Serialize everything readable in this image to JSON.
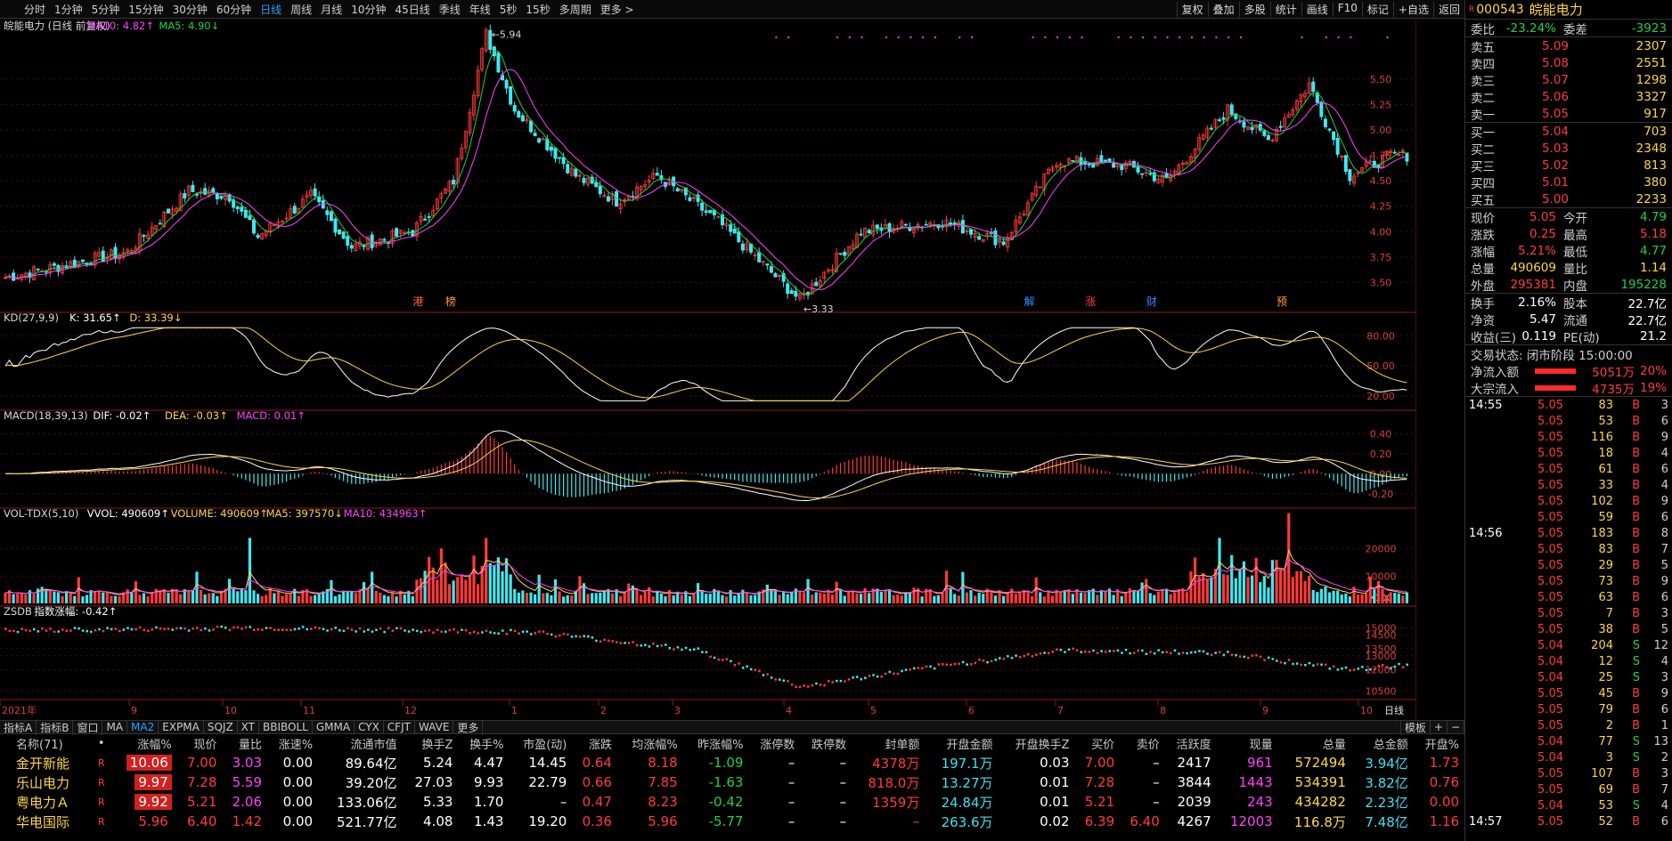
{
  "toolbar": {
    "periods": [
      "分时",
      "1分钟",
      "5分钟",
      "15分钟",
      "30分钟",
      "60分钟",
      "日线",
      "周线",
      "月线",
      "10分钟",
      "45日线",
      "季线",
      "年线",
      "5秒",
      "15秒",
      "多周期",
      "更多 >"
    ],
    "active": "日线",
    "tools": [
      "复权",
      "叠加",
      "多股",
      "统计",
      "画线",
      "F10",
      "标记",
      "+自选",
      "返回"
    ]
  },
  "chart_header": {
    "title": "皖能电力 (日线 前复权)",
    "ma10": "MA10: 4.82↑",
    "ma5": "MA5: 4.90↓"
  },
  "price_axis": [
    "5.50",
    "5.25",
    "5.00",
    "4.75",
    "4.50",
    "4.25",
    "4.00",
    "3.75",
    "3.50"
  ],
  "high_label": "5.94",
  "low_label": "3.33",
  "events": [
    "港",
    "榜",
    "解",
    "涨",
    "财",
    "预"
  ],
  "kd": {
    "header": "KD(27,9,9)",
    "k": "K: 31.65↑",
    "d": "D: 33.39↓",
    "axis": [
      "80.00",
      "50.00",
      "20.00"
    ]
  },
  "macd": {
    "header": "MACD(18,39,13)",
    "dif": "DIF: -0.02↑",
    "dea": "DEA: -0.03↑",
    "macd": "MACD: 0.01↑",
    "axis": [
      "0.40",
      "0.20",
      "0.00",
      "-0.20"
    ]
  },
  "vol": {
    "header": "VOL-TDX(5,10)",
    "vvol": "VVOL: 490609↑",
    "volume": "VOLUME: 490609↑",
    "ma5": "MA5: 397570↓",
    "ma10": "MA10: 434963↑",
    "axis": [
      "20000",
      "10000"
    ],
    "unit": "X100"
  },
  "zsdb": {
    "header": "ZSDB",
    "label": "指数涨幅: -0.42↑",
    "axis": [
      "15000",
      "14500",
      "13500",
      "13000",
      "12000",
      "10500"
    ]
  },
  "xaxis": [
    "2021年",
    "9",
    "10",
    "11",
    "12",
    "1",
    "2",
    "3",
    "4",
    "5",
    "6",
    "7",
    "8",
    "9",
    "10",
    "日线"
  ],
  "indicator_tabs": [
    "指标A",
    "指标B",
    "窗口",
    "MA",
    "MA2",
    "EXPMA",
    "SQJZ",
    "XT",
    "BBIBOLL",
    "GMMA",
    "CYX",
    "CFJT",
    "WAVE",
    "更多"
  ],
  "indicator_active": "MA2",
  "template_btn": "模板",
  "table": {
    "headers": [
      "名称(71)",
      "•",
      "涨幅%",
      "现价",
      "量比",
      "涨速%",
      "流通市值",
      "换手Z",
      "换手%",
      "市盈(动)",
      "涨跌",
      "均涨幅%",
      "昨涨幅%",
      "涨停数",
      "跌停数",
      "封单额",
      "开盘金额",
      "开盘换手Z",
      "买价",
      "卖价",
      "活跃度",
      "现量",
      "总量",
      "总金额",
      "开盘%"
    ],
    "rows": [
      [
        "金开新能",
        "R",
        "10.06",
        "7.00",
        "3.03",
        "0.00",
        "89.64亿",
        "5.24",
        "4.47",
        "14.45",
        "0.64",
        "8.18",
        "-1.09",
        "–",
        "–",
        "4378万",
        "197.1万",
        "0.03",
        "7.00",
        "–",
        "2417",
        "961",
        "572494",
        "3.94亿",
        "1.73"
      ],
      [
        "乐山电力",
        "R",
        "9.97",
        "7.28",
        "5.59",
        "0.00",
        "39.20亿",
        "27.03",
        "9.93",
        "22.79",
        "0.66",
        "7.85",
        "-1.63",
        "–",
        "–",
        "818.0万",
        "13.27万",
        "0.01",
        "7.28",
        "–",
        "3844",
        "1443",
        "534391",
        "3.82亿",
        "0.76"
      ],
      [
        "粤电力Ａ",
        "R",
        "9.92",
        "5.21",
        "2.06",
        "0.00",
        "133.06亿",
        "5.33",
        "1.70",
        "–",
        "0.47",
        "8.23",
        "-0.42",
        "–",
        "–",
        "1359万",
        "24.84万",
        "0.01",
        "5.21",
        "–",
        "2039",
        "243",
        "434282",
        "2.23亿",
        "0.00"
      ],
      [
        "华电国际",
        "R",
        "5.96",
        "6.40",
        "1.42",
        "0.00",
        "521.77亿",
        "4.08",
        "1.43",
        "19.20",
        "0.36",
        "5.96",
        "-5.77",
        "–",
        "–",
        "–",
        "263.6万",
        "0.02",
        "6.39",
        "6.40",
        "4267",
        "12003",
        "116.8万",
        "7.48亿",
        "1.16"
      ]
    ]
  },
  "quote": {
    "code": "000543",
    "name": "皖能电力",
    "wb_label": "委比",
    "wb": "-23.24%",
    "wc_label": "委差",
    "wc": "-3923",
    "asks": [
      [
        "卖五",
        "5.09",
        "2307"
      ],
      [
        "卖四",
        "5.08",
        "2551"
      ],
      [
        "卖三",
        "5.07",
        "1298"
      ],
      [
        "卖二",
        "5.06",
        "3327"
      ],
      [
        "卖一",
        "5.05",
        "917"
      ]
    ],
    "bids": [
      [
        "买一",
        "5.04",
        "703"
      ],
      [
        "买二",
        "5.03",
        "2348"
      ],
      [
        "买三",
        "5.02",
        "813"
      ],
      [
        "买四",
        "5.01",
        "380"
      ],
      [
        "买五",
        "5.00",
        "2233"
      ]
    ],
    "stats": [
      [
        "现价",
        "5.05",
        "今开",
        "4.79"
      ],
      [
        "涨跌",
        "0.25",
        "最高",
        "5.18"
      ],
      [
        "涨幅",
        "5.21%",
        "最低",
        "4.77"
      ],
      [
        "总量",
        "490609",
        "量比",
        "1.14"
      ],
      [
        "外盘",
        "295381",
        "内盘",
        "195228"
      ]
    ],
    "stats2": [
      [
        "换手",
        "2.16%",
        "股本",
        "22.7亿"
      ],
      [
        "净资",
        "5.47",
        "流通",
        "22.7亿"
      ],
      [
        "收益(三)",
        "0.119",
        "PE(动)",
        "21.2"
      ]
    ],
    "status": "交易状态: 闭市阶段 15:00:00",
    "flows": [
      [
        "净流入额",
        "5051万",
        "20%"
      ],
      [
        "大宗流入",
        "4735万",
        "19%"
      ]
    ]
  },
  "ticks": [
    {
      "t": "14:55",
      "p": "5.05",
      "v": "83",
      "s": "B",
      "n": "3"
    },
    {
      "p": "5.05",
      "v": "53",
      "s": "B",
      "n": "6"
    },
    {
      "p": "5.05",
      "v": "116",
      "s": "B",
      "n": "9"
    },
    {
      "p": "5.05",
      "v": "18",
      "s": "B",
      "n": "4"
    },
    {
      "p": "5.05",
      "v": "61",
      "s": "B",
      "n": "6"
    },
    {
      "p": "5.05",
      "v": "33",
      "s": "B",
      "n": "4"
    },
    {
      "p": "5.05",
      "v": "102",
      "s": "B",
      "n": "9"
    },
    {
      "p": "5.05",
      "v": "59",
      "s": "B",
      "n": "6"
    },
    {
      "t": "14:56",
      "p": "5.05",
      "v": "183",
      "s": "B",
      "n": "8"
    },
    {
      "p": "5.05",
      "v": "83",
      "s": "B",
      "n": "7"
    },
    {
      "p": "5.05",
      "v": "29",
      "s": "B",
      "n": "5"
    },
    {
      "p": "5.05",
      "v": "73",
      "s": "B",
      "n": "9"
    },
    {
      "p": "5.05",
      "v": "63",
      "s": "B",
      "n": "6"
    },
    {
      "p": "5.05",
      "v": "7",
      "s": "B",
      "n": "3"
    },
    {
      "p": "5.05",
      "v": "38",
      "s": "B",
      "n": "5"
    },
    {
      "p": "5.04",
      "v": "204",
      "s": "S",
      "n": "12"
    },
    {
      "p": "5.04",
      "v": "12",
      "s": "S",
      "n": "4"
    },
    {
      "p": "5.04",
      "v": "25",
      "s": "S",
      "n": "3"
    },
    {
      "p": "5.05",
      "v": "45",
      "s": "B",
      "n": "9"
    },
    {
      "p": "5.05",
      "v": "79",
      "s": "B",
      "n": "6"
    },
    {
      "p": "5.05",
      "v": "2",
      "s": "B",
      "n": "1"
    },
    {
      "p": "5.04",
      "v": "77",
      "s": "S",
      "n": "13"
    },
    {
      "p": "5.04",
      "v": "3",
      "s": "S",
      "n": "2"
    },
    {
      "p": "5.05",
      "v": "107",
      "s": "B",
      "n": "3"
    },
    {
      "p": "5.05",
      "v": "69",
      "s": "B",
      "n": "7"
    },
    {
      "p": "5.04",
      "v": "53",
      "s": "S",
      "n": "4"
    },
    {
      "t": "14:57",
      "p": "5.05",
      "v": "52",
      "s": "B",
      "n": "6"
    }
  ]
}
